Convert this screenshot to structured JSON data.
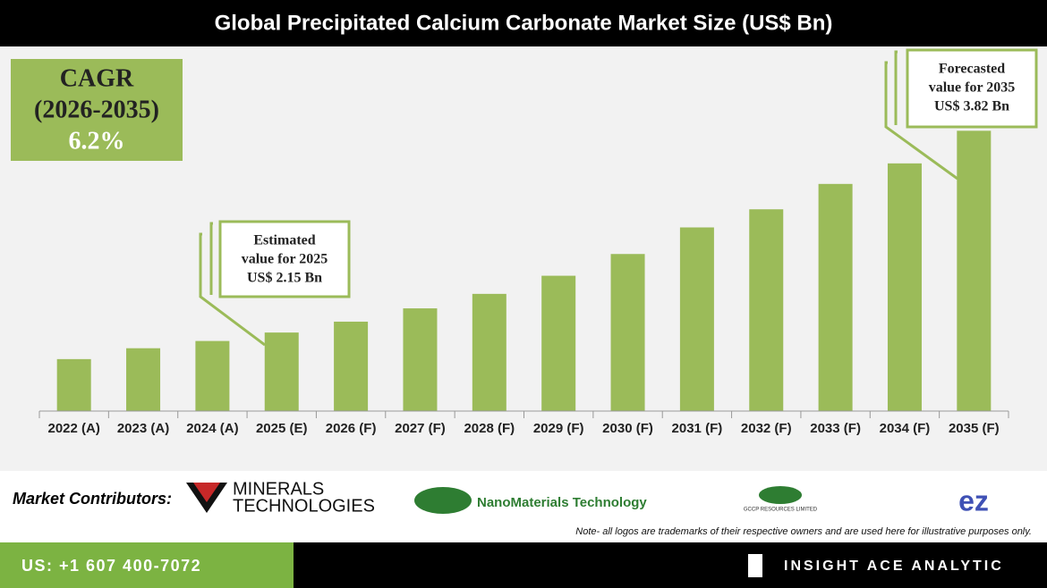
{
  "chart_data": {
    "type": "bar",
    "title": "Global Precipitated Calcium Carbonate Market Size (US$ Bn)",
    "categories": [
      "2022 (A)",
      "2023 (A)",
      "2024 (A)",
      "2025 (E)",
      "2026 (F)",
      "2027 (F)",
      "2028 (F)",
      "2029 (F)",
      "2030 (F)",
      "2031 (F)",
      "2032 (F)",
      "2033 (F)",
      "2034 (F)",
      "2035 (F)"
    ],
    "values": [
      1.93,
      2.02,
      2.08,
      2.15,
      2.24,
      2.35,
      2.47,
      2.62,
      2.8,
      3.02,
      3.17,
      3.38,
      3.55,
      3.82
    ],
    "color": "#9bbb59",
    "ylim": [
      1.5,
      4.0
    ],
    "cagr": [
      "CAGR",
      "(2026-2035)",
      "6.2%"
    ],
    "annotations": [
      {
        "lines": [
          "Estimated",
          "value for 2025",
          "US$ 2.15 Bn"
        ]
      },
      {
        "lines": [
          "Forecasted",
          "value for 2035",
          "US$ 3.82 Bn"
        ]
      }
    ]
  },
  "footer": {
    "contributors_label": "Market Contributors:",
    "logos": [
      "MINERALS",
      "TECHNOLOGIES",
      "NanoMaterials Technology",
      "GCCP RESOURCES LIMITED",
      "ez"
    ],
    "note": "Note- all logos are trademarks of their respective owners and are used here for illustrative purposes only.",
    "phone": "US: +1 607 400-7072",
    "brand": "INSIGHT ACE ANALYTIC"
  }
}
